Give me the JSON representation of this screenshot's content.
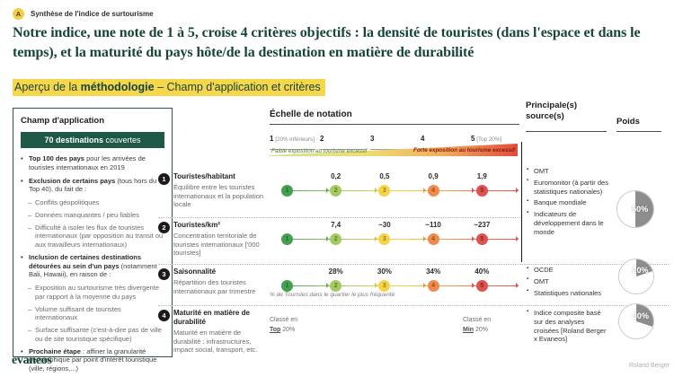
{
  "colors": {
    "accent_green": "#17453a",
    "highlight_yellow": "#f6d64a",
    "badge_green": "#1e5948",
    "scale_circles": [
      "#44a04f",
      "#a6ca63",
      "#f5d348",
      "#ee8b50",
      "#dc5451"
    ],
    "pie_gray": "#8d8d8d"
  },
  "header": {
    "badge_letter": "A",
    "eyebrow": "Synthèse de l'indice de surtourisme",
    "title": "Notre indice, une note de 1 à 5, croise 4 critères objectifs : la densité de touristes (dans l'espace et dans le temps), et la maturité du pays hôte/de la destination en matière de durabilité",
    "subtitle_prefix": "Aperçu de la ",
    "subtitle_bold": "méthodologie",
    "subtitle_suffix": " – Champ d'application et critères"
  },
  "scope": {
    "title": "Champ d'application",
    "badge_bold": "70 destinations",
    "badge_rest": " couvertes",
    "items": [
      {
        "lead": "Top 100 des pays",
        "rest": " pour les arrivées de touristes internationaux en 2019",
        "subs": []
      },
      {
        "lead": "Exclusion de certains pays",
        "rest": " (tous hors du Top 40), du fait de :",
        "subs": [
          "Conflits géopolitiques",
          "Données manquantes / peu fiables",
          "Difficulté à isoler les flux de touristes internationaux (par opposition au transit ou aux travailleurs internationaux)"
        ]
      },
      {
        "lead": "Inclusion de certaines destinations détourées au sein d'un pays",
        "rest": " (notamment Bali, Hawaii), en raison de :",
        "subs": [
          "Exposition au surtourisme très divergente par rapport à la moyenne du pays",
          "Volume suffisant de touristes internationaux",
          "Surface suffisante (c'est-à-dire pas de ville ou de site touristique spécifique)"
        ]
      },
      {
        "lead": "Prochaine étape",
        "rest": " : affiner la granularité géographique par point d'intérêt touristique (ville, régions,...)",
        "subs": []
      }
    ]
  },
  "scale": {
    "title": "Échelle de notation",
    "ticks": [
      {
        "num": "1",
        "note": "[20% inférieurs]"
      },
      {
        "num": "2",
        "note": ""
      },
      {
        "num": "3",
        "note": ""
      },
      {
        "num": "4",
        "note": ""
      },
      {
        "num": "5",
        "note": "[Top 20%]"
      }
    ],
    "low_label": "Faible exposition au tourisme excessif",
    "high_label": "Forte exposition au tourisme excessif",
    "circle_nums": [
      "1",
      "2",
      "3",
      "4",
      "5"
    ]
  },
  "criteria": [
    {
      "num": "1",
      "title": "Touristes/habitant",
      "desc": "Équilibre entre les touristes internationaux et la population locale",
      "thresholds": [
        "0,2",
        "0,5",
        "0,9",
        "1,9"
      ],
      "footnote": ""
    },
    {
      "num": "2",
      "title": "Touristes/km²",
      "desc": "Concentration territoriale de touristes internationaux ['000 touristes]",
      "thresholds": [
        "7,4",
        "~30",
        "~110",
        "~237"
      ],
      "footnote": ""
    },
    {
      "num": "3",
      "title": "Saisonnalité",
      "desc": "Répartition des touristes internationaux par trimestre",
      "thresholds": [
        "28%",
        "30%",
        "34%",
        "40%"
      ],
      "footnote": "% de Touristes dans le quartier le plus fréquenté"
    },
    {
      "num": "4",
      "title": "Maturité en matière de durabilité",
      "desc": "Maturité en matière de durabilité : infrastructures, impact social, transport, etc.",
      "thresholds": [],
      "footnote": "",
      "rank_left": {
        "prefix": "Classé en",
        "em": "Top",
        "suffix": "20%"
      },
      "rank_right": {
        "prefix": "Classé en",
        "em": "Min",
        "suffix": "20%"
      }
    }
  ],
  "sources": {
    "header": "Principale(s) source(s)",
    "groups": [
      [
        "OMT",
        "Euromonitor (à partir des statistiques nationales)",
        "Banque mondiale",
        "Indicateurs de développement dans le monde"
      ],
      [
        "OCDE",
        "OMT",
        "Statistiques nationales"
      ],
      [
        "Indice composite basé sur des analyses croisées [Roland Berger x Evaneos]"
      ]
    ]
  },
  "weights": {
    "header": "Poids",
    "values": [
      {
        "percent": 50,
        "label": "50%"
      },
      {
        "percent": 20,
        "label": "20%"
      },
      {
        "percent": 30,
        "label": "30%"
      }
    ]
  },
  "footer": {
    "brand": "evaneos",
    "credit": "Roland Berger"
  }
}
